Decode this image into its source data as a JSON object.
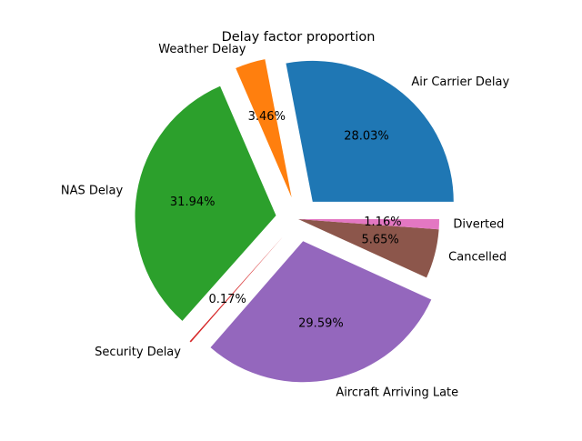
{
  "chart_data": {
    "type": "pie",
    "title": "Delay factor proportion",
    "start_angle_deg": 0,
    "direction": "counterclockwise",
    "labels": [
      "Air Carrier Delay",
      "Weather Delay",
      "NAS Delay",
      "Security Delay",
      "Aircraft Arriving Late",
      "Cancelled",
      "Diverted"
    ],
    "values": [
      28.03,
      3.46,
      31.94,
      0.17,
      29.59,
      5.65,
      1.16
    ],
    "percent_labels": [
      "28.03%",
      "3.46%",
      "31.94%",
      "0.17%",
      "29.59%",
      "5.65%",
      "1.16%"
    ],
    "exploded": [
      true,
      true,
      true,
      true,
      true,
      false,
      false
    ],
    "colors": [
      "#1f77b4",
      "#ff7f0e",
      "#2ca02c",
      "#d62728",
      "#9467bd",
      "#8c564b",
      "#e377c2"
    ]
  }
}
